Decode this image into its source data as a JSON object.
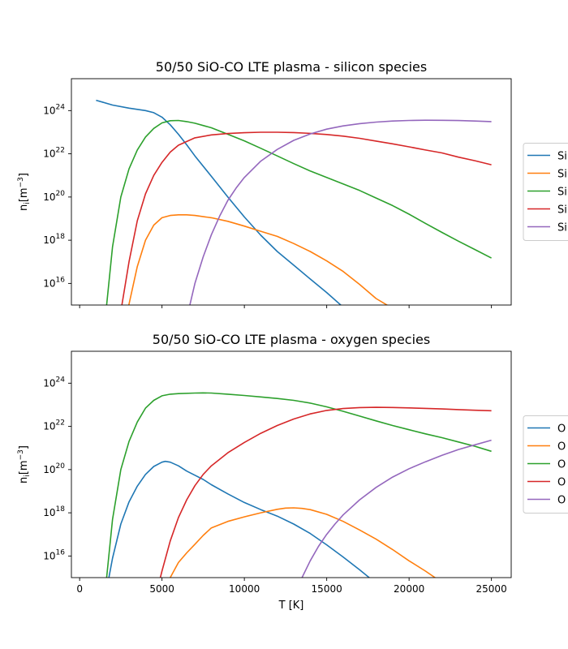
{
  "chart_data": [
    {
      "type": "line",
      "title": "50/50 SiO-CO LTE plasma - silicon species",
      "xlabel": "",
      "ylabel_main": "n",
      "ylabel_sub": "i",
      "ylabel_unit_open": "[m",
      "ylabel_unit_sup": "−3",
      "ylabel_unit_close": "]",
      "xscale": "linear",
      "yscale": "log",
      "xlim": [
        -500,
        26200
      ],
      "ylim": [
        1000000000000000.0,
        3e+25
      ],
      "x_ticks": [
        0,
        5000,
        10000,
        15000,
        20000,
        25000
      ],
      "x_ticklabels_visible": false,
      "y_ticks": [
        {
          "value": 1e+16,
          "base": "10",
          "exp": "16"
        },
        {
          "value": 1e+18,
          "base": "10",
          "exp": "18"
        },
        {
          "value": 1e+20,
          "base": "10",
          "exp": "20"
        },
        {
          "value": 1e+22,
          "base": "10",
          "exp": "22"
        },
        {
          "value": 1e+24,
          "base": "10",
          "exp": "24"
        }
      ],
      "grid": false,
      "legend_position": "right (clipped at figure edge)",
      "series": [
        {
          "name": "Si",
          "color": "#1f77b4",
          "x": [
            1000,
            2000,
            3000,
            4000,
            4500,
            5000,
            5500,
            6000,
            6500,
            7000,
            8000,
            9000,
            10000,
            11000,
            12000,
            13000,
            14000,
            15000,
            16000,
            16300
          ],
          "y": [
            3e+24,
            1.8e+24,
            1.3e+24,
            1e+24,
            8e+23,
            5e+23,
            2.2e+23,
            8e+22,
            2.6e+22,
            8e+21,
            9e+20,
            1e+20,
            1.2e+19,
            1.7e+18,
            3e+17,
            7e+16,
            1.6e+16,
            3800000000000000.0,
            800000000000000.0,
            500000000000000.0
          ]
        },
        {
          "name": "Si",
          "color": "#ff7f0e",
          "x": [
            2900,
            3500,
            4000,
            4500,
            5000,
            5500,
            6000,
            6500,
            7000,
            8000,
            9000,
            10000,
            11000,
            12000,
            13000,
            14000,
            15000,
            16000,
            17000,
            18000,
            19000,
            19500
          ],
          "y": [
            500000000000000.0,
            6e+16,
            1e+18,
            5e+18,
            1.1e+19,
            1.4e+19,
            1.5e+19,
            1.5e+19,
            1.4e+19,
            1.1e+19,
            7.5e+18,
            4.5e+18,
            2.6e+18,
            1.5e+18,
            7e+17,
            3e+17,
            1.1e+17,
            3.6e+16,
            9000000000000000.0,
            2000000000000000.0,
            700000000000000.0,
            500000000000000.0
          ]
        },
        {
          "name": "Si",
          "color": "#2ca02c",
          "x": [
            1600,
            2000,
            2500,
            3000,
            3500,
            4000,
            4500,
            5000,
            5500,
            6000,
            6500,
            7000,
            8000,
            9000,
            10000,
            11000,
            12000,
            13000,
            14000,
            15000,
            16000,
            17000,
            18000,
            19000,
            20000,
            21000,
            22000,
            23000,
            24000,
            25000
          ],
          "y": [
            500000000000000.0,
            5e+17,
            1e+20,
            2e+21,
            1.5e+22,
            6e+22,
            1.5e+23,
            2.7e+23,
            3.4e+23,
            3.5e+23,
            3.1e+23,
            2.6e+23,
            1.6e+23,
            8e+22,
            4e+22,
            1.8e+22,
            8e+21,
            3.5e+21,
            1.6e+21,
            8e+20,
            4e+20,
            2e+20,
            9e+19,
            4e+19,
            1.6e+19,
            6e+18,
            2.3e+18,
            9e+17,
            3.7e+17,
            1.5e+17
          ]
        },
        {
          "name": "Si",
          "color": "#d62728",
          "x": [
            2500,
            3000,
            3500,
            4000,
            4500,
            5000,
            5500,
            6000,
            7000,
            8000,
            9000,
            10000,
            11000,
            12000,
            13000,
            14000,
            15000,
            16000,
            17000,
            18000,
            19000,
            20000,
            21000,
            22000,
            23000,
            24000,
            25000
          ],
          "y": [
            500000000000000.0,
            1e+17,
            8e+18,
            1.4e+20,
            1e+21,
            4e+21,
            1.2e+22,
            2.5e+22,
            5.5e+22,
            7.5e+22,
            8.7e+22,
            9.5e+22,
            1e+23,
            1e+23,
            9.6e+22,
            8.8e+22,
            7.8e+22,
            6.6e+22,
            5.2e+22,
            3.9e+22,
            2.9e+22,
            2.1e+22,
            1.5e+22,
            1.1e+22,
            7e+21,
            4.8e+21,
            3.1e+21
          ]
        },
        {
          "name": "Si",
          "color": "#9467bd",
          "x": [
            6600,
            7000,
            7500,
            8000,
            8500,
            9000,
            9500,
            10000,
            11000,
            12000,
            13000,
            14000,
            15000,
            16000,
            17000,
            18000,
            19000,
            20000,
            21000,
            22000,
            23000,
            24000,
            25000
          ],
          "y": [
            500000000000000.0,
            1e+16,
            1.7e+17,
            1.8e+18,
            1.3e+19,
            7e+19,
            2.6e+20,
            8e+20,
            4.6e+21,
            1.6e+22,
            4.2e+22,
            8.3e+22,
            1.38e+23,
            1.95e+23,
            2.5e+23,
            2.95e+23,
            3.3e+23,
            3.5e+23,
            3.6e+23,
            3.55e+23,
            3.45e+23,
            3.3e+23,
            3.1e+23
          ]
        }
      ]
    },
    {
      "type": "line",
      "title": "50/50 SiO-CO LTE plasma - oxygen species",
      "xlabel": "T [K]",
      "ylabel_main": "n",
      "ylabel_sub": "i",
      "ylabel_unit_open": "[m",
      "ylabel_unit_sup": "−3",
      "ylabel_unit_close": "]",
      "xscale": "linear",
      "yscale": "log",
      "xlim": [
        -500,
        26200
      ],
      "ylim": [
        1000000000000000.0,
        3e+25
      ],
      "x_ticks": [
        0,
        5000,
        10000,
        15000,
        20000,
        25000
      ],
      "x_ticklabels_visible": true,
      "y_ticks": [
        {
          "value": 1e+16,
          "base": "10",
          "exp": "16"
        },
        {
          "value": 1e+18,
          "base": "10",
          "exp": "18"
        },
        {
          "value": 1e+20,
          "base": "10",
          "exp": "20"
        },
        {
          "value": 1e+22,
          "base": "10",
          "exp": "22"
        },
        {
          "value": 1e+24,
          "base": "10",
          "exp": "24"
        }
      ],
      "grid": false,
      "legend_position": "right (clipped at figure edge)",
      "series": [
        {
          "name": "O",
          "color": "#1f77b4",
          "x": [
            1700,
            2000,
            2500,
            3000,
            3500,
            4000,
            4500,
            5000,
            5200,
            5500,
            6000,
            6500,
            7000,
            7500,
            8000,
            9000,
            10000,
            11000,
            12000,
            13000,
            14000,
            15000,
            16000,
            17000,
            18000
          ],
          "y": [
            500000000000000.0,
            8000000000000000.0,
            3e+17,
            3.2e+18,
            1.7e+19,
            6e+19,
            1.4e+20,
            2.2e+20,
            2.4e+20,
            2.2e+20,
            1.5e+20,
            8.5e+19,
            5.5e+19,
            3.5e+19,
            2e+19,
            7.5e+18,
            3e+18,
            1.4e+18,
            7e+17,
            3e+17,
            1.1e+17,
            3.3e+16,
            9000000000000000.0,
            2300000000000000.0,
            550000000000000.0
          ]
        },
        {
          "name": "O",
          "color": "#ff7f0e",
          "x": [
            5300,
            5500,
            6000,
            6500,
            7000,
            7500,
            8000,
            9000,
            10000,
            11000,
            12000,
            12500,
            13000,
            13500,
            14000,
            15000,
            16000,
            17000,
            18000,
            19000,
            20000,
            21000,
            22000
          ],
          "y": [
            500000000000000.0,
            1000000000000000.0,
            5000000000000000.0,
            1.4e+16,
            3.5e+16,
            9e+16,
            2e+17,
            4e+17,
            6.5e+17,
            1e+18,
            1.45e+18,
            1.65e+18,
            1.7e+18,
            1.6e+18,
            1.4e+18,
            8.5e+17,
            4e+17,
            1.6e+17,
            6e+16,
            2e+16,
            6000000000000000.0,
            2000000000000000.0,
            600000000000000.0
          ]
        },
        {
          "name": "O",
          "color": "#2ca02c",
          "x": [
            1600,
            2000,
            2500,
            3000,
            3500,
            4000,
            4500,
            5000,
            5500,
            6000,
            7000,
            7500,
            8000,
            9000,
            10000,
            11000,
            12000,
            13000,
            14000,
            15000,
            16000,
            17000,
            18000,
            19000,
            20000,
            21000,
            22000,
            23000,
            24000,
            25000
          ],
          "y": [
            500000000000000.0,
            5e+17,
            1e+20,
            2e+21,
            1.6e+22,
            7e+22,
            1.6e+23,
            2.6e+23,
            3.1e+23,
            3.3e+23,
            3.5e+23,
            3.55e+23,
            3.5e+23,
            3.1e+23,
            2.7e+23,
            2.3e+23,
            1.95e+23,
            1.6e+23,
            1.2e+23,
            8e+22,
            5e+22,
            3e+22,
            1.8e+22,
            1.1e+22,
            7e+21,
            4.5e+21,
            3e+21,
            1.9e+21,
            1.2e+21,
            7e+20
          ]
        },
        {
          "name": "O",
          "color": "#d62728",
          "x": [
            4800,
            5000,
            5500,
            6000,
            6500,
            7000,
            7500,
            8000,
            9000,
            10000,
            11000,
            12000,
            13000,
            14000,
            15000,
            16000,
            17000,
            18000,
            19000,
            20000,
            21000,
            22000,
            23000,
            24000,
            25000
          ],
          "y": [
            500000000000000.0,
            2000000000000000.0,
            5e+16,
            6e+17,
            4e+18,
            1.8e+19,
            6e+19,
            1.5e+20,
            6e+20,
            1.8e+21,
            4.8e+21,
            1.1e+22,
            2.2e+22,
            3.8e+22,
            5.5e+22,
            6.7e+22,
            7.4e+22,
            7.6e+22,
            7.5e+22,
            7.2e+22,
            6.8e+22,
            6.4e+22,
            6e+22,
            5.6e+22,
            5.3e+22
          ]
        },
        {
          "name": "O",
          "color": "#9467bd",
          "x": [
            13300,
            13500,
            14000,
            14500,
            15000,
            15500,
            16000,
            17000,
            18000,
            19000,
            20000,
            21000,
            22000,
            23000,
            24000,
            25000
          ],
          "y": [
            500000000000000.0,
            1000000000000000.0,
            6000000000000000.0,
            2.8e+16,
            1e+17,
            3e+17,
            8e+17,
            4e+18,
            1.5e+19,
            4.5e+19,
            1.1e+20,
            2.3e+20,
            4.6e+20,
            8.5e+20,
            1.4e+21,
            2.3e+21
          ]
        }
      ]
    }
  ]
}
